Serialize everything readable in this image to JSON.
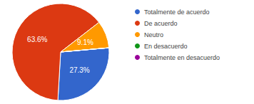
{
  "chart_data": {
    "type": "pie",
    "categories": [
      "Totalmente de acuerdo",
      "De acuerdo",
      "Neutro",
      "En desacuerdo",
      "Totalmente en desacuerdo"
    ],
    "values": [
      27.3,
      63.6,
      9.1,
      0,
      0
    ],
    "colors": [
      "#3366cc",
      "#dc3912",
      "#ff9900",
      "#109618",
      "#990099"
    ],
    "data_labels": true,
    "value_labels": [
      "27.3%",
      "63.6%",
      "9.1%",
      null,
      null
    ],
    "legend": "right"
  }
}
